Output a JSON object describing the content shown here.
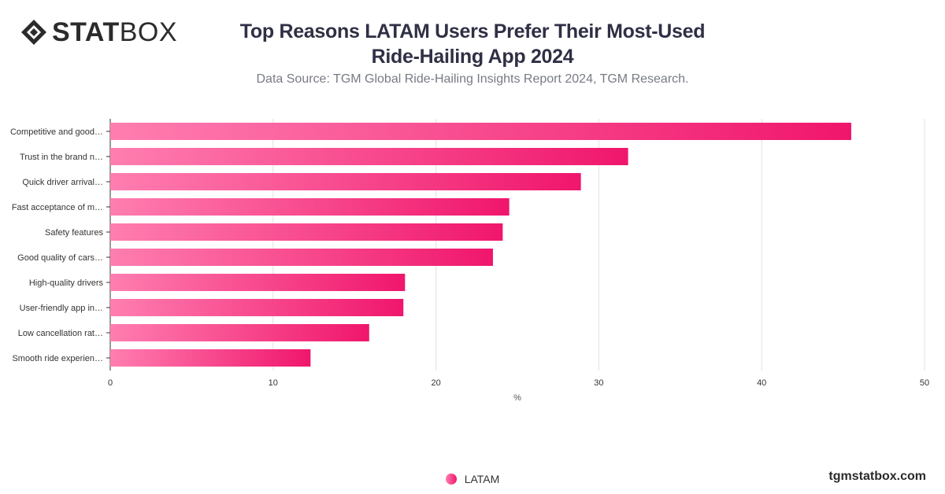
{
  "brand": {
    "logo_bold": "STAT",
    "logo_light": "BOX",
    "footer": "tgmstatbox.com"
  },
  "header": {
    "title_line1": "Top Reasons LATAM Users Prefer Their Most-Used",
    "title_line2": "Ride-Hailing App 2024",
    "subtitle": "Data Source: TGM Global Ride-Hailing Insights Report 2024, TGM Research."
  },
  "legend": {
    "label": "LATAM"
  },
  "colors": {
    "bar_start": "#ff7eb0",
    "bar_end": "#f0166c",
    "grid": "#e2e2e2",
    "axis": "#333333"
  },
  "chart_data": {
    "type": "bar",
    "orientation": "horizontal",
    "categories": [
      "Competitive and good…",
      "Trust in the brand n…",
      "Quick driver arrival…",
      "Fast acceptance of m…",
      "Safety features",
      "Good quality of cars…",
      "High-quality drivers",
      "User-friendly app in…",
      "Low cancellation rat…",
      "Smooth ride experien…"
    ],
    "series": [
      {
        "name": "LATAM",
        "values": [
          45.5,
          31.8,
          28.9,
          24.5,
          24.1,
          23.5,
          18.1,
          18.0,
          15.9,
          12.3
        ]
      }
    ],
    "xlabel": "%",
    "ylabel": "",
    "xlim": [
      0,
      50
    ],
    "xticks": [
      0,
      10,
      20,
      30,
      40,
      50
    ],
    "grid": true,
    "legend_position": "bottom"
  }
}
